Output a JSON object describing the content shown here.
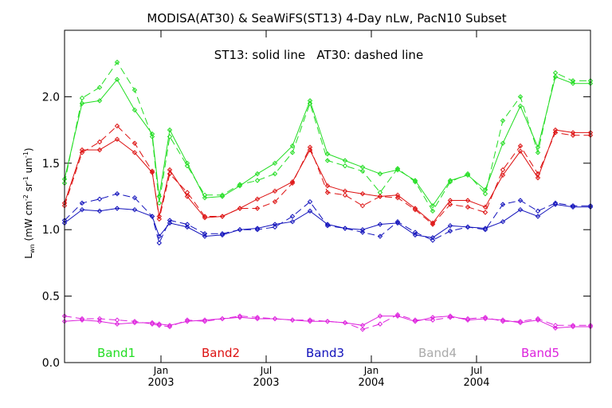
{
  "chart_data": {
    "type": "line",
    "title": "MODISA(AT30) & SeaWiFS(ST13) 4-Day nLw, PacN10 Subset",
    "annotation": "ST13: solid line   AT30: dashed line",
    "ylabel": "L_wn (mW cm^-2 sr^-1 um^-1)",
    "ylabel_parts": {
      "base": "L",
      "sub": "wn",
      "rest": " (mW cm",
      "e1": "-2",
      "m1": " sr",
      "e2": "-1",
      "m2": " um",
      "e3": "-1",
      "end": ")"
    },
    "xlabel": "",
    "ylim": [
      0,
      2.5
    ],
    "xlim": [
      0,
      30
    ],
    "yticks": [
      {
        "v": 0.0,
        "label": "0.0"
      },
      {
        "v": 0.5,
        "label": "0.5"
      },
      {
        "v": 1.0,
        "label": "1.0"
      },
      {
        "v": 1.5,
        "label": "1.5"
      },
      {
        "v": 2.0,
        "label": "2.0"
      }
    ],
    "xticks": [
      {
        "x": 5.5,
        "month": "Jan",
        "year": "2003"
      },
      {
        "x": 11.5,
        "month": "Jul",
        "year": "2003"
      },
      {
        "x": 17.5,
        "month": "Jan",
        "year": "2004"
      },
      {
        "x": 23.5,
        "month": "Jul",
        "year": "2004"
      }
    ],
    "legend": [
      {
        "name": "Band1",
        "color": "#22dd22"
      },
      {
        "name": "Band2",
        "color": "#dd1111"
      },
      {
        "name": "Band3",
        "color": "#1111bb"
      },
      {
        "name": "Band4",
        "color": "#aaaaaa"
      },
      {
        "name": "Band5",
        "color": "#dd22dd"
      }
    ],
    "x": [
      0,
      1,
      2,
      3,
      4,
      5,
      5.4,
      6,
      7,
      8,
      9,
      10,
      11,
      12,
      13,
      14,
      15,
      16,
      17,
      18,
      19,
      20,
      21,
      22,
      23,
      24,
      25,
      26,
      27,
      28,
      29,
      30
    ],
    "series": [
      {
        "band": "Band1",
        "style": "solid",
        "color": "#22dd22",
        "values": [
          1.38,
          1.95,
          1.97,
          2.13,
          1.9,
          1.72,
          1.25,
          1.75,
          1.5,
          1.24,
          1.25,
          1.33,
          1.42,
          1.5,
          1.63,
          1.97,
          1.57,
          1.52,
          1.47,
          1.42,
          1.45,
          1.37,
          1.18,
          1.37,
          1.41,
          1.3,
          1.65,
          1.93,
          1.62,
          2.15,
          2.1,
          2.1
        ]
      },
      {
        "band": "Band1",
        "style": "dashed",
        "color": "#22dd22",
        "values": [
          1.35,
          1.99,
          2.07,
          2.26,
          2.05,
          1.7,
          1.2,
          1.7,
          1.48,
          1.26,
          1.26,
          1.34,
          1.37,
          1.42,
          1.58,
          1.95,
          1.52,
          1.48,
          1.44,
          1.28,
          1.46,
          1.36,
          1.14,
          1.36,
          1.42,
          1.27,
          1.82,
          2.0,
          1.58,
          2.18,
          2.12,
          2.12
        ]
      },
      {
        "band": "Band2",
        "style": "solid",
        "color": "#dd1111",
        "values": [
          1.2,
          1.6,
          1.6,
          1.68,
          1.58,
          1.43,
          1.1,
          1.45,
          1.25,
          1.09,
          1.1,
          1.16,
          1.23,
          1.29,
          1.36,
          1.6,
          1.33,
          1.29,
          1.27,
          1.25,
          1.26,
          1.16,
          1.05,
          1.22,
          1.22,
          1.17,
          1.41,
          1.59,
          1.39,
          1.75,
          1.73,
          1.73
        ]
      },
      {
        "band": "Band2",
        "style": "dashed",
        "color": "#dd1111",
        "values": [
          1.18,
          1.58,
          1.66,
          1.78,
          1.65,
          1.44,
          1.08,
          1.42,
          1.28,
          1.1,
          1.1,
          1.16,
          1.16,
          1.21,
          1.35,
          1.62,
          1.28,
          1.26,
          1.18,
          1.25,
          1.24,
          1.15,
          1.04,
          1.19,
          1.17,
          1.13,
          1.45,
          1.63,
          1.42,
          1.73,
          1.71,
          1.71
        ]
      },
      {
        "band": "Band3",
        "style": "solid",
        "color": "#1111bb",
        "values": [
          1.05,
          1.15,
          1.14,
          1.16,
          1.15,
          1.1,
          0.95,
          1.05,
          1.02,
          0.95,
          0.96,
          1.0,
          1.01,
          1.04,
          1.06,
          1.14,
          1.04,
          1.01,
          1.0,
          1.04,
          1.05,
          0.96,
          0.94,
          1.03,
          1.02,
          1.01,
          1.06,
          1.15,
          1.1,
          1.19,
          1.17,
          1.17
        ]
      },
      {
        "band": "Band3",
        "style": "dashed",
        "color": "#1111bb",
        "values": [
          1.07,
          1.2,
          1.23,
          1.27,
          1.24,
          1.1,
          0.9,
          1.07,
          1.04,
          0.97,
          0.97,
          1.0,
          1.0,
          1.02,
          1.1,
          1.21,
          1.03,
          1.01,
          0.98,
          0.95,
          1.06,
          0.98,
          0.92,
          0.99,
          1.02,
          1.0,
          1.19,
          1.22,
          1.14,
          1.2,
          1.18,
          1.18
        ]
      },
      {
        "band": "Band5",
        "style": "solid",
        "color": "#dd22dd",
        "values": [
          0.31,
          0.32,
          0.31,
          0.29,
          0.3,
          0.3,
          0.29,
          0.28,
          0.31,
          0.32,
          0.33,
          0.34,
          0.33,
          0.33,
          0.32,
          0.31,
          0.31,
          0.3,
          0.28,
          0.35,
          0.35,
          0.31,
          0.34,
          0.35,
          0.32,
          0.33,
          0.32,
          0.3,
          0.32,
          0.26,
          0.27,
          0.27
        ]
      },
      {
        "band": "Band5",
        "style": "dashed",
        "color": "#dd22dd",
        "values": [
          0.35,
          0.33,
          0.33,
          0.32,
          0.31,
          0.29,
          0.28,
          0.27,
          0.32,
          0.31,
          0.33,
          0.35,
          0.34,
          0.33,
          0.32,
          0.32,
          0.31,
          0.3,
          0.25,
          0.29,
          0.36,
          0.32,
          0.32,
          0.34,
          0.33,
          0.34,
          0.31,
          0.31,
          0.33,
          0.28,
          0.28,
          0.28
        ]
      }
    ]
  }
}
